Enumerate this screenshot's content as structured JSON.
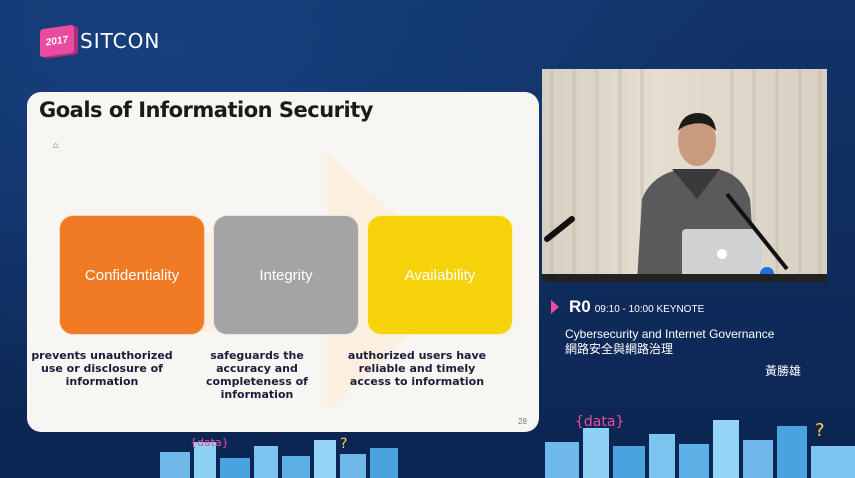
{
  "brand": {
    "year": "2017",
    "name": "SITCON"
  },
  "slide": {
    "title": "Goals of Information Security",
    "bullet_mark": "⌂",
    "goals": [
      {
        "label": "Confidentiality",
        "description": "prevents unauthorized use or disclosure of information",
        "color": "#f07b24"
      },
      {
        "label": "Integrity",
        "description": "safeguards the accuracy and completeness of information",
        "color": "#a4a4a4"
      },
      {
        "label": "Availability",
        "description": "authorized users have reliable and timely access to information",
        "color": "#f6d20b"
      }
    ],
    "page_number": "28"
  },
  "session": {
    "room": "R0",
    "time": "09:10 - 10:00 KEYNOTE",
    "title_en": "Cybersecurity and Internet Governance",
    "title_zh": "網路安全與網路治理",
    "speaker": "黃勝雄"
  },
  "decor": {
    "city_text": "{data}"
  },
  "colors": {
    "accent": "#e94ca0",
    "background": "#0e2a5c"
  }
}
